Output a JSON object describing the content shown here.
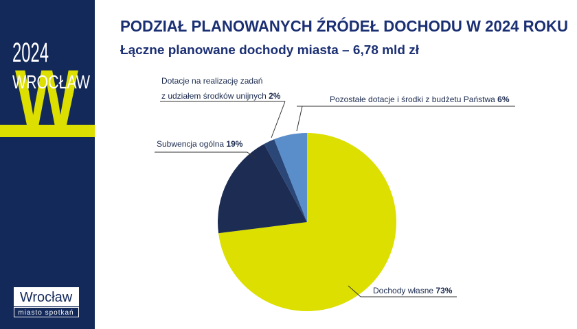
{
  "sidebar": {
    "year": "2024",
    "city": "WROCŁAW",
    "letter": "W",
    "logo": "Wrocław",
    "tagline": "miasto spotkań"
  },
  "chart_data": {
    "type": "pie",
    "title": "PODZIAŁ PLANOWANYCH ŹRÓDEŁ DOCHODU W 2024 ROKU",
    "subtitle": "Łączne planowane dochody miasta – 6,78 mld zł",
    "categories": [
      "Dochody własne",
      "Subwencja ogólna",
      "Dotacje na realizację zadań\nz udziałem środków unijnych",
      "Pozostałe dotacje i środki z budżetu Państwa"
    ],
    "values": [
      73,
      19,
      2,
      6
    ],
    "value_labels": [
      "73%",
      "19%",
      "2%",
      "6%"
    ],
    "colors": [
      "#dcdf00",
      "#1d2c52",
      "#2b4778",
      "#5a8ecb"
    ]
  }
}
